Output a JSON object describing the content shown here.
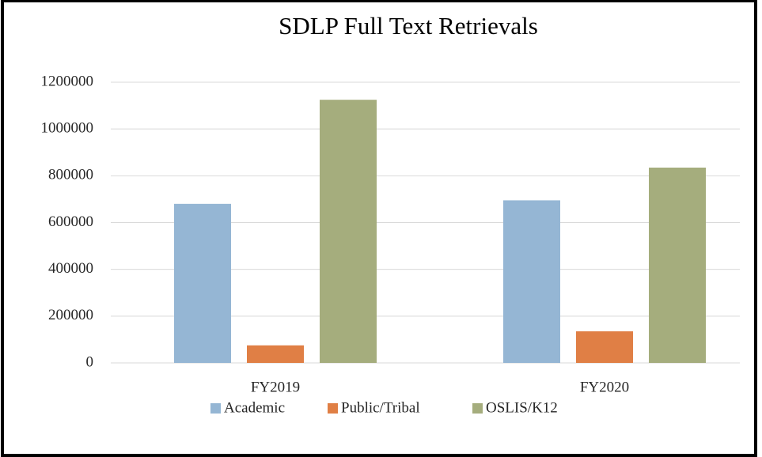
{
  "chart_data": {
    "type": "bar",
    "title": "SDLP Full Text Retrievals",
    "categories": [
      "FY2019",
      "FY2020"
    ],
    "series": [
      {
        "name": "Academic",
        "color": "#95b6d4",
        "values": [
          680000,
          695000
        ]
      },
      {
        "name": "Public/Tribal",
        "color": "#e07f45",
        "values": [
          75000,
          135000
        ]
      },
      {
        "name": "OSLIS/K12",
        "color": "#a5ad7d",
        "values": [
          1125000,
          835000
        ]
      }
    ],
    "ylim": [
      0,
      1200000
    ],
    "yticks": [
      0,
      200000,
      400000,
      600000,
      800000,
      1000000,
      1200000
    ],
    "grid": true,
    "legend": "bottom"
  }
}
